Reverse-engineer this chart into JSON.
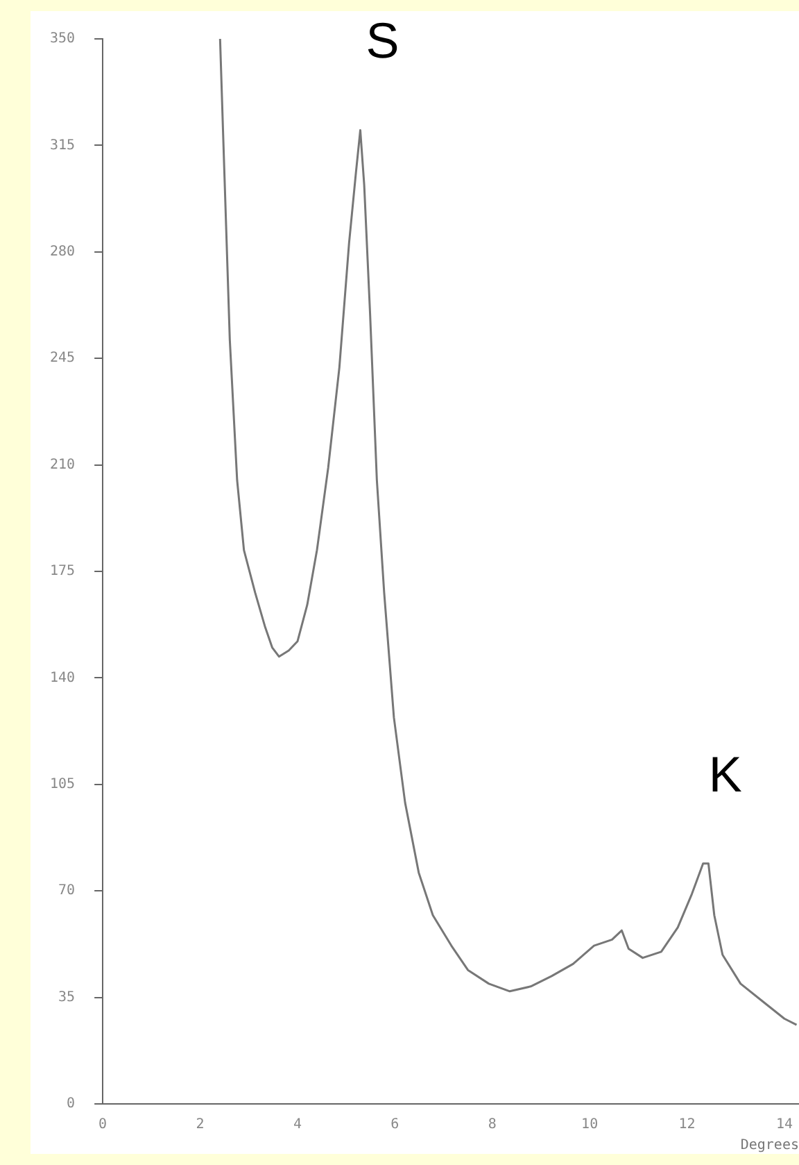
{
  "chart_data": {
    "type": "line",
    "xlabel": "Degrees",
    "xlim": [
      0,
      14.3
    ],
    "xticks": [
      0,
      2,
      4,
      6,
      8,
      10,
      12,
      14
    ],
    "ylim": [
      0,
      350
    ],
    "yticks": [
      0,
      35,
      70,
      105,
      140,
      175,
      210,
      245,
      280,
      315,
      350
    ],
    "grid": false,
    "legend": false,
    "marker": "none",
    "line_style": "solid",
    "annotations": [
      {
        "text": "S",
        "x": 5.29,
        "y": 320
      },
      {
        "text": "K",
        "x": 12.33,
        "y": 79
      }
    ],
    "series": [
      {
        "color": "#777777",
        "x": [
          2.41,
          2.47,
          2.61,
          2.76,
          2.9,
          3.13,
          3.33,
          3.48,
          3.62,
          3.82,
          4.0,
          4.2,
          4.4,
          4.63,
          4.86,
          5.06,
          5.2,
          5.29,
          5.37,
          5.49,
          5.63,
          5.78,
          5.98,
          6.21,
          6.49,
          6.78,
          7.16,
          7.5,
          7.93,
          8.36,
          8.79,
          9.22,
          9.66,
          10.09,
          10.46,
          10.66,
          10.8,
          11.09,
          11.47,
          11.81,
          12.1,
          12.33,
          12.44,
          12.56,
          12.73,
          13.1,
          13.53,
          14.0,
          14.25
        ],
        "values": [
          350,
          320,
          251,
          205,
          182,
          168,
          157,
          150,
          147,
          149,
          152,
          164,
          182,
          209,
          242,
          283,
          306,
          320,
          302,
          260,
          205,
          168,
          127,
          99,
          76,
          62,
          52,
          44,
          39.5,
          37,
          38.6,
          42,
          46,
          52,
          54,
          57,
          51,
          48,
          50,
          58,
          69,
          79,
          79,
          62,
          49,
          39.5,
          34,
          28,
          26
        ]
      }
    ]
  }
}
